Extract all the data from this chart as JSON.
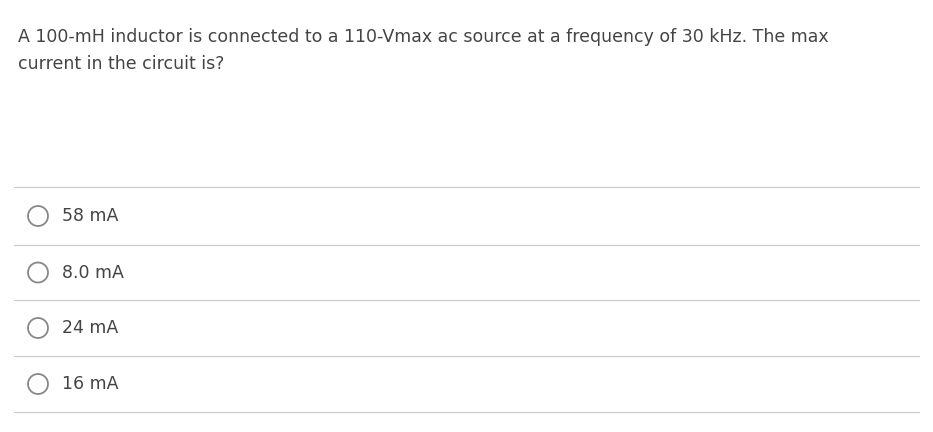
{
  "question_line1": "A 100-mH inductor is connected to a 110-Vmax ac source at a frequency of 30 kHz. The max",
  "question_line2": "current in the circuit is?",
  "options": [
    "58 mA",
    "8.0 mA",
    "24 mA",
    "16 mA"
  ],
  "bg_color": "#ffffff",
  "text_color": "#444444",
  "line_color": "#cccccc",
  "circle_color": "#888888",
  "question_fontsize": 12.5,
  "option_fontsize": 12.5,
  "fig_width": 9.33,
  "fig_height": 4.32,
  "dpi": 100
}
